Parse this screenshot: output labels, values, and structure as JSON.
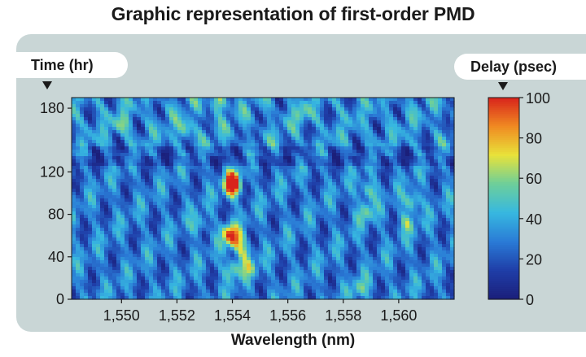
{
  "chart_data": {
    "type": "heatmap",
    "title": "Graphic representation of first-order PMD",
    "xlabel": "Wavelength (nm)",
    "ylabel": "Time (hr)",
    "colorbar_label": "Delay (psec)",
    "x_ticks": [
      "1,550",
      "1,552",
      "1,554",
      "1,556",
      "1,558",
      "1,560"
    ],
    "x_tick_values": [
      1550,
      1552,
      1554,
      1556,
      1558,
      1560
    ],
    "xlim": [
      1548.2,
      1562.0
    ],
    "y_ticks": [
      "0",
      "40",
      "80",
      "120",
      "180"
    ],
    "y_tick_values": [
      0,
      40,
      80,
      120,
      180
    ],
    "ylim": [
      0,
      190
    ],
    "colorbar_ticks": [
      "0",
      "20",
      "40",
      "60",
      "80",
      "100"
    ],
    "colorbar_tick_values": [
      0,
      20,
      40,
      60,
      80,
      100
    ],
    "zlim": [
      0,
      100
    ],
    "background_level": 28,
    "hotspots": [
      {
        "wavelength": 1554.0,
        "time": 112,
        "delay": 95
      },
      {
        "wavelength": 1554.0,
        "time": 104,
        "delay": 80
      },
      {
        "wavelength": 1553.9,
        "time": 62,
        "delay": 88
      },
      {
        "wavelength": 1554.1,
        "time": 55,
        "delay": 70
      },
      {
        "wavelength": 1554.0,
        "time": 28,
        "delay": 65
      },
      {
        "wavelength": 1554.4,
        "time": 45,
        "delay": 60
      },
      {
        "wavelength": 1554.6,
        "time": 30,
        "delay": 58
      },
      {
        "wavelength": 1558.9,
        "time": 102,
        "delay": 62
      },
      {
        "wavelength": 1558.8,
        "time": 82,
        "delay": 58
      },
      {
        "wavelength": 1558.6,
        "time": 10,
        "delay": 55
      },
      {
        "wavelength": 1560.5,
        "time": 92,
        "delay": 65
      },
      {
        "wavelength": 1560.3,
        "time": 72,
        "delay": 55
      },
      {
        "wavelength": 1553.5,
        "time": 185,
        "delay": 60
      },
      {
        "wavelength": 1552.3,
        "time": 160,
        "delay": 58
      },
      {
        "wavelength": 1550.0,
        "time": 165,
        "delay": 52
      },
      {
        "wavelength": 1556.5,
        "time": 175,
        "delay": 50
      },
      {
        "wavelength": 1552.8,
        "time": 70,
        "delay": 50
      }
    ],
    "colors": {
      "scale": [
        "#1b1f7a",
        "#1f3ea8",
        "#2a7bd6",
        "#37b8e0",
        "#6dcf9a",
        "#e8e23a",
        "#f08a22",
        "#d8231c"
      ],
      "tick_text": "#1a1a1a",
      "frame": "#1a1a1a",
      "panel": "#c9d6d6",
      "pointer": "#1a1a1a"
    }
  }
}
